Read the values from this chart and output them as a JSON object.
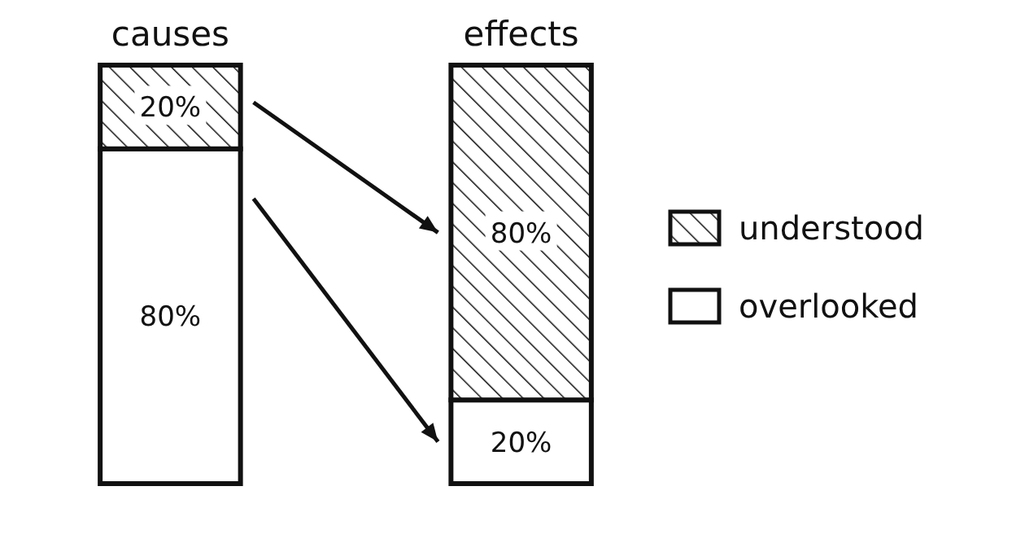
{
  "chart_data": {
    "type": "bar",
    "stacked": true,
    "categories": [
      "causes",
      "effects"
    ],
    "series": [
      {
        "name": "overlooked",
        "color": "#ffffff",
        "values": [
          80,
          20
        ],
        "value_labels": [
          "80%",
          "20%"
        ]
      },
      {
        "name": "understood",
        "color": "#111111",
        "values": [
          20,
          80
        ],
        "value_labels": [
          "20%",
          "80%"
        ]
      }
    ],
    "legend": "right"
  }
}
